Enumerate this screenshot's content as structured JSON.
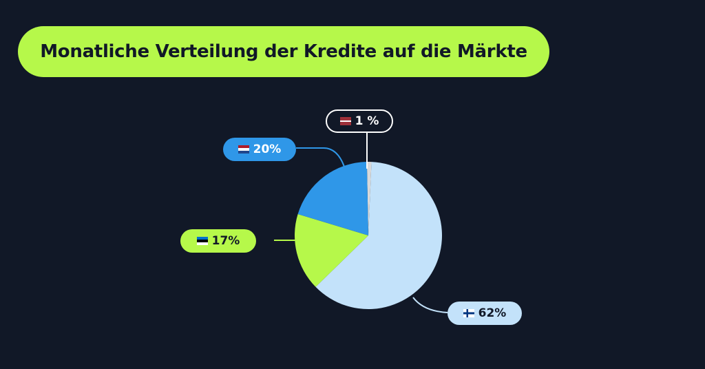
{
  "chart_data": {
    "type": "pie",
    "title": "Monatliche Verteilung der Kredite auf die Märkte",
    "slices": [
      {
        "label": "1 %",
        "value": 1,
        "flag": "latvia-flag",
        "color": "#d9d9d9"
      },
      {
        "label": "62%",
        "value": 62,
        "flag": "finland-flag",
        "color": "#c3e2fa"
      },
      {
        "label": "17%",
        "value": 17,
        "flag": "estonia-flag",
        "color": "#b6f84a"
      },
      {
        "label": "20%",
        "value": 20,
        "flag": "netherlands-flag",
        "color": "#2f97e8"
      }
    ],
    "legend": "none"
  },
  "colors": {
    "background": "#111827",
    "accent": "#b6f84a",
    "blue": "#2f97e8",
    "light_blue": "#c3e2fa"
  }
}
